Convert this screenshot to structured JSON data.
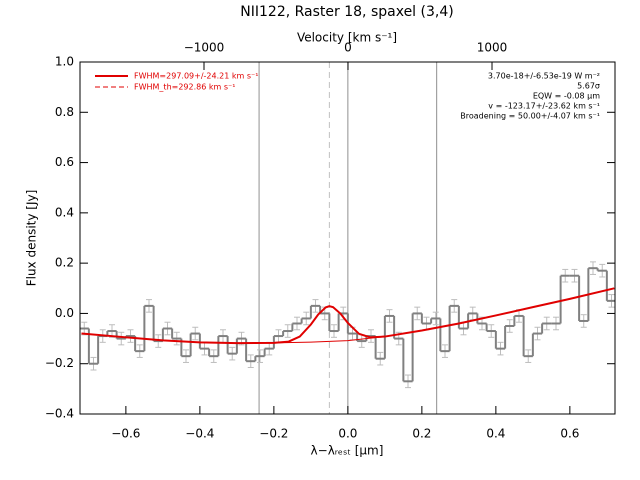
{
  "chart_data": {
    "type": "step",
    "title": "NII122, Raster 18, spaxel (3,4)",
    "x_label": "λ−λᵣₑₛₜ [μm]",
    "y_label": "Flux density [Jy]",
    "x2_label": "Velocity [km s⁻¹]",
    "xlim": [
      -0.724,
      0.722
    ],
    "ylim": [
      -0.4,
      1.0
    ],
    "x2lim": [
      -1861,
      1854
    ],
    "xticks": [
      {
        "value": -0.6,
        "label": "−0.6"
      },
      {
        "value": -0.4,
        "label": "−0.4"
      },
      {
        "value": -0.2,
        "label": "−0.2"
      },
      {
        "value": 0.0,
        "label": "0.0"
      },
      {
        "value": 0.2,
        "label": "0.2"
      },
      {
        "value": 0.4,
        "label": "0.4"
      },
      {
        "value": 0.6,
        "label": "0.6"
      }
    ],
    "yticks": [
      {
        "value": -0.4,
        "label": "−0.4"
      },
      {
        "value": -0.2,
        "label": "−0.2"
      },
      {
        "value": 0.0,
        "label": "0.0"
      },
      {
        "value": 0.2,
        "label": "0.2"
      },
      {
        "value": 0.4,
        "label": "0.4"
      },
      {
        "value": 0.6,
        "label": "0.6"
      },
      {
        "value": 0.8,
        "label": "0.8"
      },
      {
        "value": 1.0,
        "label": "1.0"
      }
    ],
    "x2ticks": [
      {
        "value": -1000,
        "label": "−1000"
      },
      0,
      1000
    ],
    "data": {
      "color": "#808080",
      "error_color": "#bdbdbd",
      "error": 0.025,
      "x": [
        -0.7125,
        -0.6875,
        -0.6625,
        -0.6375,
        -0.6125,
        -0.5875,
        -0.5625,
        -0.5375,
        -0.5125,
        -0.4875,
        -0.4625,
        -0.4375,
        -0.4125,
        -0.3875,
        -0.3625,
        -0.3375,
        -0.3125,
        -0.2875,
        -0.2625,
        -0.2375,
        -0.2125,
        -0.1875,
        -0.1625,
        -0.1375,
        -0.1125,
        -0.0875,
        -0.0625,
        -0.0375,
        -0.0125,
        0.0125,
        0.0375,
        0.0625,
        0.0875,
        0.1125,
        0.1375,
        0.1625,
        0.1875,
        0.2125,
        0.2375,
        0.2625,
        0.2875,
        0.3125,
        0.3375,
        0.3625,
        0.3875,
        0.4125,
        0.4375,
        0.4625,
        0.4875,
        0.5125,
        0.5375,
        0.5625,
        0.5875,
        0.6125,
        0.6375,
        0.6625,
        0.6875,
        0.7125
      ],
      "values": [
        -0.06,
        -0.2,
        -0.09,
        -0.07,
        -0.1,
        -0.09,
        -0.15,
        0.03,
        -0.11,
        -0.06,
        -0.1,
        -0.17,
        -0.08,
        -0.14,
        -0.17,
        -0.09,
        -0.16,
        -0.1,
        -0.19,
        -0.17,
        -0.14,
        -0.09,
        -0.07,
        -0.04,
        -0.02,
        0.03,
        0.0,
        -0.07,
        0.0,
        -0.08,
        -0.11,
        -0.09,
        -0.18,
        -0.01,
        -0.1,
        -0.27,
        0.0,
        -0.04,
        -0.02,
        -0.15,
        0.03,
        -0.06,
        0.0,
        -0.04,
        -0.07,
        -0.14,
        -0.05,
        -0.01,
        -0.17,
        -0.08,
        -0.04,
        -0.04,
        0.15,
        0.15,
        -0.03,
        0.18,
        0.17,
        0.05
      ]
    },
    "series": [
      {
        "color": "#e00000",
        "width": 2,
        "x": [
          -0.72,
          -0.6,
          -0.5,
          -0.4,
          -0.3,
          -0.2,
          -0.16,
          -0.13,
          -0.1,
          -0.08,
          -0.06,
          -0.05,
          -0.04,
          -0.02,
          0.0,
          0.03,
          0.06,
          0.1,
          0.2,
          0.3,
          0.4,
          0.5,
          0.6,
          0.72
        ],
        "values": [
          -0.08,
          -0.095,
          -0.107,
          -0.115,
          -0.118,
          -0.117,
          -0.112,
          -0.092,
          -0.044,
          -0.004,
          0.024,
          0.029,
          0.025,
          -0.001,
          -0.038,
          -0.081,
          -0.095,
          -0.092,
          -0.068,
          -0.04,
          -0.008,
          0.025,
          0.058,
          0.1
        ]
      },
      {
        "color": "#e00000",
        "width": 1,
        "x": [
          -0.72,
          -0.6,
          -0.5,
          -0.4,
          -0.3,
          -0.2,
          -0.1,
          0.0,
          0.1,
          0.2,
          0.3,
          0.4,
          0.5,
          0.6,
          0.72
        ],
        "values": [
          -0.08,
          -0.095,
          -0.107,
          -0.115,
          -0.118,
          -0.117,
          -0.114,
          -0.108,
          -0.092,
          -0.068,
          -0.04,
          -0.008,
          0.025,
          0.058,
          0.1
        ]
      }
    ],
    "vlines": [
      {
        "value": -0.24,
        "style": "solid",
        "color": "#909090"
      },
      {
        "value": -0.05,
        "style": "dashed",
        "color": "#c0c0c0"
      },
      {
        "value": 0.0,
        "style": "solid",
        "color": "#909090"
      },
      {
        "value": 0.24,
        "style": "solid",
        "color": "#909090"
      }
    ],
    "legend": [
      {
        "label": "FWHM=297.09+/-24.21 km s⁻¹",
        "color": "#e00000",
        "style": "solid"
      },
      {
        "label": "FWHM_th=292.86 km s⁻¹",
        "color": "#e00000",
        "style": "dashed"
      }
    ],
    "annotations": [
      "3.70e-18+/-6.53e-19 W m⁻²",
      "5.67σ",
      "EQW = -0.08 μm",
      "v = -123.17+/-23.62 km s⁻¹",
      "Broadening = 50.00+/-4.07 km s⁻¹"
    ]
  }
}
